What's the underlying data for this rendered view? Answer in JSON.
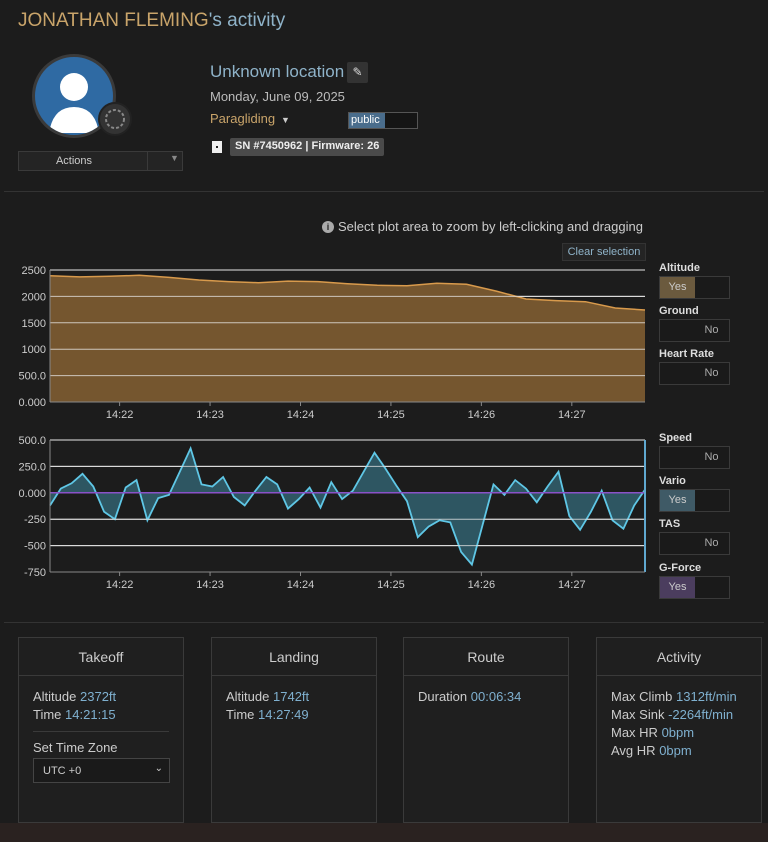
{
  "page": {
    "owner": "JONATHAN FLEMING",
    "title_suffix": "'s activity"
  },
  "profile": {
    "actions_label": "Actions",
    "location": "Unknown location",
    "date": "Monday, June 09, 2025",
    "sport": "Paragliding",
    "visibility": "public",
    "device": "SN #7450962 | Firmware: 26"
  },
  "charts": {
    "zoom_hint": "Select plot area to zoom by left-clicking and dragging",
    "clear_selection": "Clear selection",
    "toggles": [
      {
        "label": "Altitude",
        "state": "Yes",
        "on": true,
        "color": "#6b5a3e"
      },
      {
        "label": "Ground",
        "state": "No",
        "on": false
      },
      {
        "label": "Heart Rate",
        "state": "No",
        "on": false
      },
      {
        "label": "Speed",
        "state": "No",
        "on": false
      },
      {
        "label": "Vario",
        "state": "Yes",
        "on": true,
        "color": "#3f5a66"
      },
      {
        "label": "TAS",
        "state": "No",
        "on": false
      },
      {
        "label": "G-Force",
        "state": "Yes",
        "on": true,
        "color": "#4b3d5e"
      }
    ]
  },
  "chart_data": [
    {
      "type": "area",
      "series": [
        {
          "name": "Altitude",
          "color": "#d89a4c",
          "fill": "#7a5a30"
        }
      ],
      "x_ticks": [
        "14:22",
        "14:23",
        "14:24",
        "14:25",
        "14:26",
        "14:27"
      ],
      "y_ticks": [
        "2500",
        "2000",
        "1500",
        "1000",
        "500.0",
        "0.000"
      ],
      "ylim": [
        0,
        2500
      ],
      "x": [
        0,
        0.05,
        0.1,
        0.15,
        0.2,
        0.25,
        0.3,
        0.35,
        0.4,
        0.45,
        0.5,
        0.55,
        0.6,
        0.65,
        0.7,
        0.75,
        0.8,
        0.85,
        0.9,
        0.95,
        1.0
      ],
      "values": [
        2390,
        2370,
        2380,
        2400,
        2360,
        2310,
        2280,
        2260,
        2290,
        2280,
        2240,
        2210,
        2200,
        2250,
        2230,
        2100,
        1950,
        1920,
        1900,
        1780,
        1742
      ]
    },
    {
      "type": "area",
      "series": [
        {
          "name": "Vario",
          "color": "#5fc7e6",
          "fill": "#2f5a66"
        }
      ],
      "x_ticks": [
        "14:22",
        "14:23",
        "14:24",
        "14:25",
        "14:26",
        "14:27"
      ],
      "y_ticks": [
        "500.0",
        "250.0",
        "0.000",
        "-250",
        "-500",
        "-750"
      ],
      "ylim": [
        -750,
        500
      ],
      "values": [
        -120,
        40,
        90,
        180,
        60,
        -180,
        -250,
        50,
        120,
        -260,
        -50,
        -20,
        200,
        420,
        80,
        60,
        150,
        -40,
        -120,
        20,
        150,
        80,
        -150,
        -60,
        50,
        -140,
        100,
        -60,
        20,
        200,
        380,
        230,
        70,
        -80,
        -420,
        -320,
        -260,
        -280,
        -560,
        -680,
        -300,
        80,
        -20,
        120,
        40,
        -90,
        60,
        200,
        -220,
        -350,
        -180,
        20,
        -260,
        -340,
        -120,
        30
      ]
    }
  ],
  "summary": {
    "takeoff": {
      "title": "Takeoff",
      "altitude_label": "Altitude",
      "altitude": "2372ft",
      "time_label": "Time",
      "time": "14:21:15",
      "tz_label": "Set Time Zone",
      "tz_value": "UTC +0"
    },
    "landing": {
      "title": "Landing",
      "altitude_label": "Altitude",
      "altitude": "1742ft",
      "time_label": "Time",
      "time": "14:27:49"
    },
    "route": {
      "title": "Route",
      "duration_label": "Duration",
      "duration": "00:06:34"
    },
    "activity": {
      "title": "Activity",
      "max_climb_label": "Max Climb",
      "max_climb": "1312ft/min",
      "max_sink_label": "Max Sink",
      "max_sink": "-2264ft/min",
      "max_hr_label": "Max HR",
      "max_hr": "0bpm",
      "avg_hr_label": "Avg HR",
      "avg_hr": "0bpm"
    }
  }
}
